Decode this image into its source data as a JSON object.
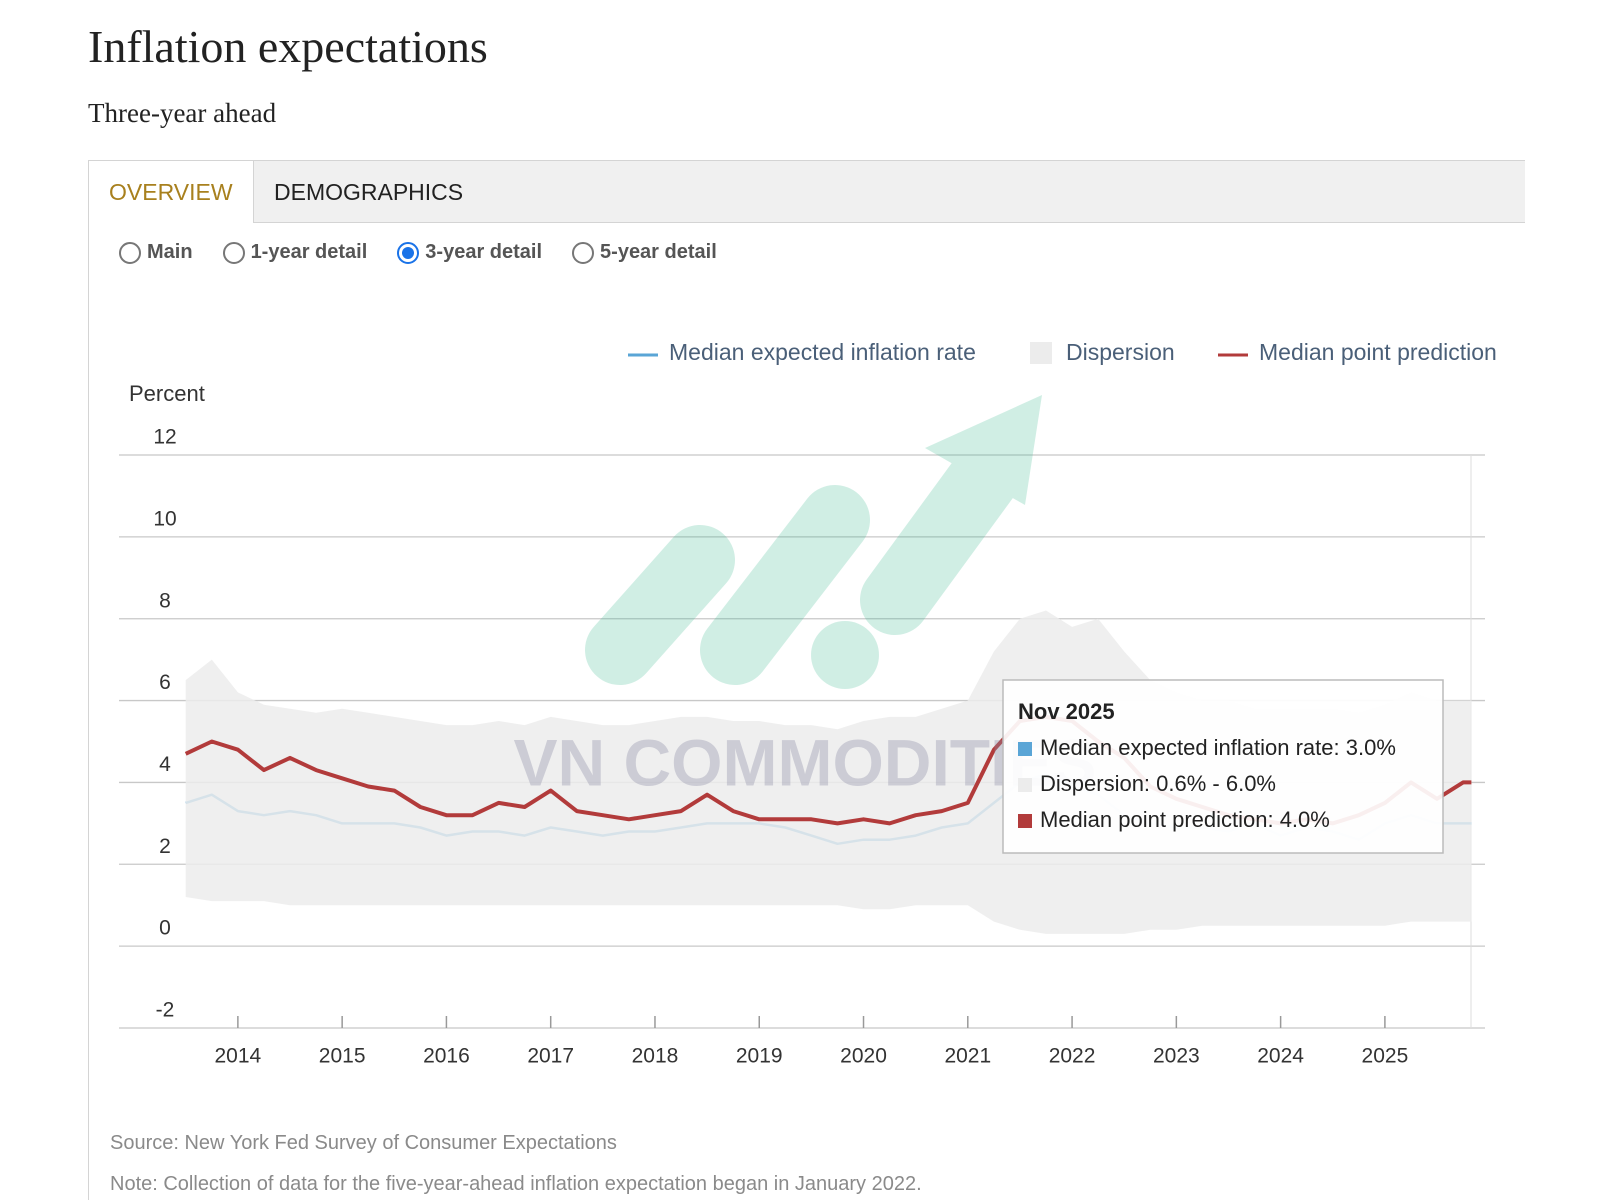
{
  "header": {
    "title": "Inflation expectations",
    "subtitle": "Three-year ahead"
  },
  "tabs": {
    "items": [
      "OVERVIEW",
      "DEMOGRAPHICS"
    ],
    "active": 0
  },
  "radios": {
    "items": [
      "Main",
      "1-year detail",
      "3-year detail",
      "5-year detail"
    ],
    "selected": 2
  },
  "chart_data": {
    "type": "line",
    "y_label": "Percent",
    "x": [
      2013.5,
      2013.75,
      2014,
      2014.25,
      2014.5,
      2014.75,
      2015,
      2015.25,
      2015.5,
      2015.75,
      2016,
      2016.25,
      2016.5,
      2016.75,
      2017,
      2017.25,
      2017.5,
      2017.75,
      2018,
      2018.25,
      2018.5,
      2018.75,
      2019,
      2019.25,
      2019.5,
      2019.75,
      2020,
      2020.25,
      2020.5,
      2020.75,
      2021,
      2021.25,
      2021.5,
      2021.75,
      2022,
      2022.25,
      2022.5,
      2022.75,
      2023,
      2023.25,
      2023.5,
      2023.75,
      2024,
      2024.25,
      2024.5,
      2024.75,
      2025,
      2025.25,
      2025.5,
      2025.75,
      2025.83
    ],
    "series": [
      {
        "name": "Median expected inflation rate",
        "color": "#5aa5d6",
        "values": [
          3.5,
          3.7,
          3.3,
          3.2,
          3.3,
          3.2,
          3.0,
          3.0,
          3.0,
          2.9,
          2.7,
          2.8,
          2.8,
          2.7,
          2.9,
          2.8,
          2.7,
          2.8,
          2.8,
          2.9,
          3.0,
          3.0,
          3.0,
          2.9,
          2.7,
          2.5,
          2.6,
          2.6,
          2.7,
          2.9,
          3.0,
          3.5,
          4.0,
          4.2,
          3.9,
          3.7,
          3.2,
          3.0,
          2.9,
          2.9,
          2.8,
          3.0,
          2.7,
          2.9,
          2.8,
          2.6,
          3.0,
          3.2,
          3.0,
          3.0,
          3.0
        ]
      },
      {
        "name": "Dispersion",
        "color": "#ececec",
        "low": [
          1.2,
          1.1,
          1.1,
          1.1,
          1.0,
          1.0,
          1.0,
          1.0,
          1.0,
          1.0,
          1.0,
          1.0,
          1.0,
          1.0,
          1.0,
          1.0,
          1.0,
          1.0,
          1.0,
          1.0,
          1.0,
          1.0,
          1.0,
          1.0,
          1.0,
          1.0,
          0.9,
          0.9,
          1.0,
          1.0,
          1.0,
          0.6,
          0.4,
          0.3,
          0.3,
          0.3,
          0.3,
          0.4,
          0.4,
          0.5,
          0.5,
          0.5,
          0.5,
          0.5,
          0.5,
          0.5,
          0.5,
          0.6,
          0.6,
          0.6,
          0.6
        ],
        "high": [
          6.5,
          7.0,
          6.2,
          5.9,
          5.8,
          5.7,
          5.8,
          5.7,
          5.6,
          5.5,
          5.4,
          5.4,
          5.5,
          5.4,
          5.6,
          5.5,
          5.4,
          5.4,
          5.5,
          5.6,
          5.6,
          5.5,
          5.5,
          5.4,
          5.4,
          5.3,
          5.5,
          5.6,
          5.6,
          5.8,
          6.0,
          7.2,
          8.0,
          8.2,
          7.8,
          8.0,
          7.2,
          6.5,
          6.2,
          6.0,
          6.0,
          5.8,
          5.8,
          5.8,
          5.8,
          5.7,
          5.9,
          6.2,
          6.0,
          6.0,
          6.0
        ]
      },
      {
        "name": "Median point prediction",
        "color": "#b23b3b",
        "values": [
          4.7,
          5.0,
          4.8,
          4.3,
          4.6,
          4.3,
          4.1,
          3.9,
          3.8,
          3.4,
          3.2,
          3.2,
          3.5,
          3.4,
          3.8,
          3.3,
          3.2,
          3.1,
          3.2,
          3.3,
          3.7,
          3.3,
          3.1,
          3.1,
          3.1,
          3.0,
          3.1,
          3.0,
          3.2,
          3.3,
          3.5,
          4.8,
          5.5,
          5.6,
          5.5,
          5.0,
          4.6,
          3.9,
          3.6,
          3.4,
          3.2,
          3.1,
          3.0,
          3.1,
          3.0,
          3.2,
          3.5,
          4.0,
          3.6,
          4.0,
          4.0
        ]
      }
    ],
    "xlim": [
      2012.86,
      2025.96
    ],
    "xticks": [
      2014,
      2015,
      2016,
      2017,
      2018,
      2019,
      2020,
      2021,
      2022,
      2023,
      2024,
      2025
    ],
    "ylim": [
      -2,
      12
    ],
    "yticks": [
      -2,
      0,
      2,
      4,
      6,
      8,
      10,
      12
    ],
    "grid": true,
    "tooltip": {
      "title": "Nov 2025",
      "lines": [
        "Median expected inflation rate: 3.0%",
        "Dispersion: 0.6% - 6.0%",
        "Median point prediction: 4.0%"
      ]
    },
    "watermark": "VN COMMODITIES"
  },
  "footer": {
    "source": "Source: New York Fed Survey of Consumer Expectations",
    "note": "Note: Collection of data for the five-year-ahead inflation expectation began in January 2022."
  }
}
